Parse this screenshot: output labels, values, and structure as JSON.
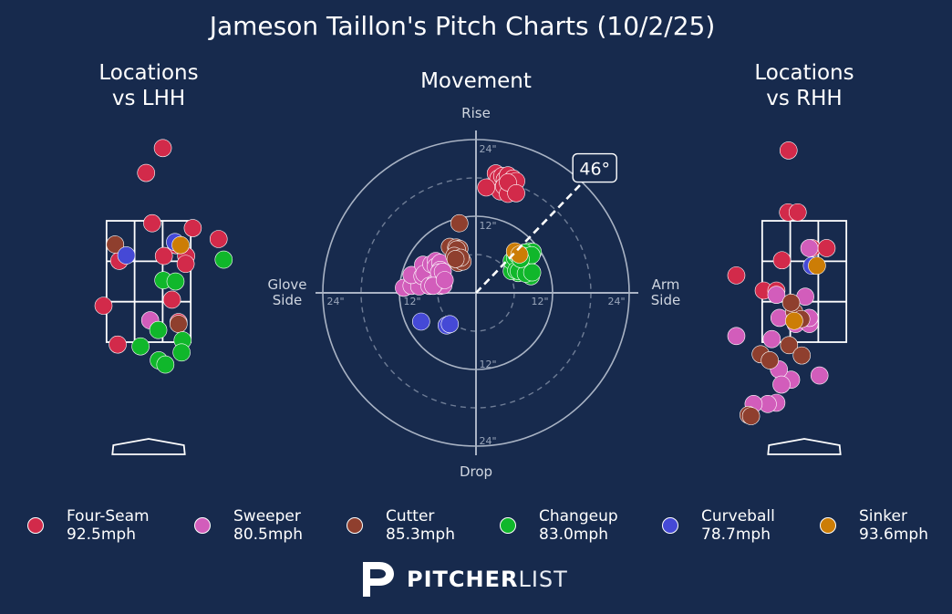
{
  "colors": {
    "background": "#172a4d",
    "text": "#ffffff",
    "polar_grid": "#a9b3c4",
    "Four-Seam": "#d22a4a",
    "Sweeper": "#d25dbb",
    "Cutter": "#8f3f2e",
    "Changeup": "#10b72b",
    "Curveball": "#4549d6",
    "Sinker": "#cc7d06"
  },
  "chart_data": [
    {
      "type": "scatter",
      "title": "Jameson Taillon's Pitch Charts (10/2/25)",
      "subtitle": "Locations vs LHH",
      "panel": "locations_lhh",
      "xlim": [
        -2.05,
        2.05
      ],
      "ylim": [
        -0.35,
        5.05
      ],
      "strike_zone": {
        "x": [
          -0.83,
          0.83
        ],
        "y": [
          1.5,
          3.5
        ]
      },
      "points": [
        {
          "pitch": "Four-Seam",
          "x": 0.28,
          "y": 4.7
        },
        {
          "pitch": "Four-Seam",
          "x": -0.05,
          "y": 4.29
        },
        {
          "pitch": "Four-Seam",
          "x": 0.07,
          "y": 3.46
        },
        {
          "pitch": "Four-Seam",
          "x": 0.87,
          "y": 3.38
        },
        {
          "pitch": "Four-Seam",
          "x": 1.38,
          "y": 3.2
        },
        {
          "pitch": "Four-Seam",
          "x": 0.54,
          "y": 3.1
        },
        {
          "pitch": "Four-Seam",
          "x": 0.74,
          "y": 2.92
        },
        {
          "pitch": "Four-Seam",
          "x": 0.3,
          "y": 2.92
        },
        {
          "pitch": "Four-Seam",
          "x": 0.73,
          "y": 2.79
        },
        {
          "pitch": "Four-Seam",
          "x": -0.58,
          "y": 2.84
        },
        {
          "pitch": "Four-Seam",
          "x": 0.46,
          "y": 2.2
        },
        {
          "pitch": "Four-Seam",
          "x": -0.89,
          "y": 2.1
        },
        {
          "pitch": "Four-Seam",
          "x": 0.59,
          "y": 1.83
        },
        {
          "pitch": "Four-Seam",
          "x": -0.61,
          "y": 1.46
        },
        {
          "pitch": "Sweeper",
          "x": 0.03,
          "y": 1.86
        },
        {
          "pitch": "Cutter",
          "x": -0.66,
          "y": 3.11
        },
        {
          "pitch": "Cutter",
          "x": 0.59,
          "y": 1.8
        },
        {
          "pitch": "Changeup",
          "x": 0.29,
          "y": 2.52
        },
        {
          "pitch": "Changeup",
          "x": 0.53,
          "y": 2.5
        },
        {
          "pitch": "Changeup",
          "x": 0.19,
          "y": 1.7
        },
        {
          "pitch": "Changeup",
          "x": 0.67,
          "y": 1.53
        },
        {
          "pitch": "Changeup",
          "x": -0.16,
          "y": 1.43
        },
        {
          "pitch": "Changeup",
          "x": 0.65,
          "y": 1.33
        },
        {
          "pitch": "Changeup",
          "x": 0.2,
          "y": 1.2
        },
        {
          "pitch": "Changeup",
          "x": 0.33,
          "y": 1.13
        },
        {
          "pitch": "Changeup",
          "x": 1.48,
          "y": 2.86
        },
        {
          "pitch": "Curveball",
          "x": -0.44,
          "y": 2.93
        },
        {
          "pitch": "Curveball",
          "x": 0.52,
          "y": 3.15
        },
        {
          "pitch": "Sinker",
          "x": 0.63,
          "y": 3.1
        }
      ]
    },
    {
      "type": "scatter",
      "subtitle": "Movement",
      "panel": "movement",
      "projection": "polar",
      "axis_labels": {
        "top": "Rise",
        "bottom": "Drop",
        "left": "Glove Side",
        "right": "Arm Side"
      },
      "rings_in": [
        12,
        24
      ],
      "dashed_rings_in": [
        6,
        18
      ],
      "ring_labels": [
        "12\"",
        "24\""
      ],
      "arm_angle_deg": 46,
      "arm_angle_label": "46°",
      "units": "inches",
      "points": [
        {
          "pitch": "Four-Seam",
          "x": 3.1,
          "y": 16.9
        },
        {
          "pitch": "Four-Seam",
          "x": 3.1,
          "y": 18.7
        },
        {
          "pitch": "Four-Seam",
          "x": 3.5,
          "y": 17.9
        },
        {
          "pitch": "Four-Seam",
          "x": 3.8,
          "y": 15.9
        },
        {
          "pitch": "Four-Seam",
          "x": 4.1,
          "y": 18.3
        },
        {
          "pitch": "Four-Seam",
          "x": 4.5,
          "y": 17.7
        },
        {
          "pitch": "Four-Seam",
          "x": 4.4,
          "y": 16.7
        },
        {
          "pitch": "Four-Seam",
          "x": 5.0,
          "y": 18.4
        },
        {
          "pitch": "Four-Seam",
          "x": 5.4,
          "y": 17.5
        },
        {
          "pitch": "Four-Seam",
          "x": 5.0,
          "y": 15.5
        },
        {
          "pitch": "Four-Seam",
          "x": 5.8,
          "y": 17.9
        },
        {
          "pitch": "Four-Seam",
          "x": 6.3,
          "y": 17.5
        },
        {
          "pitch": "Four-Seam",
          "x": 5.0,
          "y": 17.3
        },
        {
          "pitch": "Four-Seam",
          "x": 6.3,
          "y": 15.6
        },
        {
          "pitch": "Four-Seam",
          "x": 1.6,
          "y": 16.5
        },
        {
          "pitch": "Sweeper",
          "x": -11.3,
          "y": 0.8
        },
        {
          "pitch": "Sweeper",
          "x": -10.1,
          "y": 1.1
        },
        {
          "pitch": "Sweeper",
          "x": -8.9,
          "y": 1.0
        },
        {
          "pitch": "Sweeper",
          "x": -10.1,
          "y": 2.8
        },
        {
          "pitch": "Sweeper",
          "x": -8.4,
          "y": 2.6
        },
        {
          "pitch": "Sweeper",
          "x": -8.3,
          "y": 4.4
        },
        {
          "pitch": "Sweeper",
          "x": -8.1,
          "y": 3.0
        },
        {
          "pitch": "Sweeper",
          "x": -7.3,
          "y": 1.1
        },
        {
          "pitch": "Sweeper",
          "x": -7.0,
          "y": 4.5
        },
        {
          "pitch": "Sweeper",
          "x": -6.4,
          "y": 1.6
        },
        {
          "pitch": "Sweeper",
          "x": -5.6,
          "y": 1.1
        },
        {
          "pitch": "Sweeper",
          "x": -5.6,
          "y": 2.0
        },
        {
          "pitch": "Sweeper",
          "x": -6.3,
          "y": 5.0
        },
        {
          "pitch": "Sweeper",
          "x": -6.3,
          "y": 4.1
        },
        {
          "pitch": "Sweeper",
          "x": -5.6,
          "y": 4.7
        },
        {
          "pitch": "Sweeper",
          "x": -5.6,
          "y": 3.6
        },
        {
          "pitch": "Sweeper",
          "x": -5.4,
          "y": 2.3
        },
        {
          "pitch": "Sweeper",
          "x": -5.1,
          "y": 1.2
        },
        {
          "pitch": "Sweeper",
          "x": -6.6,
          "y": 1.2
        },
        {
          "pitch": "Sweeper",
          "x": -5.5,
          "y": 2.0
        },
        {
          "pitch": "Sweeper",
          "x": -5.8,
          "y": 3.2
        },
        {
          "pitch": "Sweeper",
          "x": -5.2,
          "y": 3.3
        },
        {
          "pitch": "Sweeper",
          "x": -6.7,
          "y": 1.1
        },
        {
          "pitch": "Sweeper",
          "x": -4.9,
          "y": 2.0
        },
        {
          "pitch": "Cutter",
          "x": -2.6,
          "y": 10.9
        },
        {
          "pitch": "Cutter",
          "x": -4.1,
          "y": 7.2
        },
        {
          "pitch": "Cutter",
          "x": -3.1,
          "y": 7.1
        },
        {
          "pitch": "Cutter",
          "x": -2.6,
          "y": 6.9
        },
        {
          "pitch": "Cutter",
          "x": -3.0,
          "y": 6.8
        },
        {
          "pitch": "Cutter",
          "x": -3.4,
          "y": 5.8
        },
        {
          "pitch": "Cutter",
          "x": -2.8,
          "y": 4.7
        },
        {
          "pitch": "Cutter",
          "x": -2.1,
          "y": 4.9
        },
        {
          "pitch": "Cutter",
          "x": -2.4,
          "y": 5.5
        },
        {
          "pitch": "Cutter",
          "x": -3.2,
          "y": 5.3
        },
        {
          "pitch": "Changeup",
          "x": 6.1,
          "y": 4.3
        },
        {
          "pitch": "Changeup",
          "x": 6.2,
          "y": 5.1
        },
        {
          "pitch": "Changeup",
          "x": 6.6,
          "y": 5.9
        },
        {
          "pitch": "Changeup",
          "x": 7.5,
          "y": 4.7
        },
        {
          "pitch": "Changeup",
          "x": 7.2,
          "y": 5.4
        },
        {
          "pitch": "Changeup",
          "x": 8.0,
          "y": 5.0
        },
        {
          "pitch": "Changeup",
          "x": 8.3,
          "y": 6.5
        },
        {
          "pitch": "Changeup",
          "x": 8.9,
          "y": 6.4
        },
        {
          "pitch": "Changeup",
          "x": 7.6,
          "y": 6.3
        },
        {
          "pitch": "Changeup",
          "x": 6.6,
          "y": 4.9
        },
        {
          "pitch": "Changeup",
          "x": 7.1,
          "y": 4.1
        },
        {
          "pitch": "Changeup",
          "x": 8.6,
          "y": 2.6
        },
        {
          "pitch": "Changeup",
          "x": 6.6,
          "y": 3.1
        },
        {
          "pitch": "Changeup",
          "x": 5.6,
          "y": 3.4
        },
        {
          "pitch": "Changeup",
          "x": 5.6,
          "y": 5.0
        },
        {
          "pitch": "Changeup",
          "x": 6.1,
          "y": 5.5
        },
        {
          "pitch": "Changeup",
          "x": 7.4,
          "y": 5.8
        },
        {
          "pitch": "Changeup",
          "x": 8.7,
          "y": 5.9
        },
        {
          "pitch": "Changeup",
          "x": 6.3,
          "y": 3.5
        },
        {
          "pitch": "Changeup",
          "x": 6.7,
          "y": 3.4
        },
        {
          "pitch": "Changeup",
          "x": 7.8,
          "y": 3.0
        },
        {
          "pitch": "Changeup",
          "x": 8.8,
          "y": 3.2
        },
        {
          "pitch": "Changeup",
          "x": 6.4,
          "y": 6.0
        },
        {
          "pitch": "Changeup",
          "x": 7.0,
          "y": 5.3
        },
        {
          "pitch": "Curveball",
          "x": -8.6,
          "y": -4.5
        },
        {
          "pitch": "Curveball",
          "x": -4.6,
          "y": -5.1
        },
        {
          "pitch": "Curveball",
          "x": -4.1,
          "y": -4.9
        },
        {
          "pitch": "Sinker",
          "x": 6.1,
          "y": 6.5
        },
        {
          "pitch": "Sinker",
          "x": 6.8,
          "y": 6.0
        }
      ]
    },
    {
      "type": "scatter",
      "subtitle": "Locations vs RHH",
      "panel": "locations_rhh",
      "xlim": [
        -2.05,
        2.05
      ],
      "ylim": [
        -0.35,
        5.05
      ],
      "strike_zone": {
        "x": [
          -0.83,
          0.83
        ],
        "y": [
          1.5,
          3.5
        ]
      },
      "points": [
        {
          "pitch": "Four-Seam",
          "x": -0.31,
          "y": 4.66
        },
        {
          "pitch": "Four-Seam",
          "x": -0.32,
          "y": 3.64
        },
        {
          "pitch": "Four-Seam",
          "x": -0.13,
          "y": 3.64
        },
        {
          "pitch": "Four-Seam",
          "x": 0.15,
          "y": 3.05
        },
        {
          "pitch": "Four-Seam",
          "x": 0.44,
          "y": 3.05
        },
        {
          "pitch": "Four-Seam",
          "x": -0.44,
          "y": 2.85
        },
        {
          "pitch": "Four-Seam",
          "x": -1.34,
          "y": 2.6
        },
        {
          "pitch": "Four-Seam",
          "x": -0.8,
          "y": 2.35
        },
        {
          "pitch": "Four-Seam",
          "x": -0.55,
          "y": 2.35
        },
        {
          "pitch": "Sweeper",
          "x": -1.34,
          "y": 1.6
        },
        {
          "pitch": "Sweeper",
          "x": -0.55,
          "y": 2.28
        },
        {
          "pitch": "Sweeper",
          "x": -0.49,
          "y": 1.9
        },
        {
          "pitch": "Sweeper",
          "x": -0.17,
          "y": 1.8
        },
        {
          "pitch": "Sweeper",
          "x": 0.1,
          "y": 1.8
        },
        {
          "pitch": "Sweeper",
          "x": 0.1,
          "y": 3.05
        },
        {
          "pitch": "Sweeper",
          "x": 0.02,
          "y": 2.25
        },
        {
          "pitch": "Sweeper",
          "x": -0.26,
          "y": 0.88
        },
        {
          "pitch": "Sweeper",
          "x": -0.55,
          "y": 0.5
        },
        {
          "pitch": "Sweeper",
          "x": -0.72,
          "y": 0.48
        },
        {
          "pitch": "Sweeper",
          "x": 0.1,
          "y": 1.9
        },
        {
          "pitch": "Sweeper",
          "x": 0.3,
          "y": 0.95
        },
        {
          "pitch": "Sweeper",
          "x": -0.64,
          "y": 1.55
        },
        {
          "pitch": "Sweeper",
          "x": -1.0,
          "y": 0.48
        },
        {
          "pitch": "Sweeper",
          "x": -0.5,
          "y": 1.05
        },
        {
          "pitch": "Sweeper",
          "x": -0.45,
          "y": 0.8
        },
        {
          "pitch": "Cutter",
          "x": -0.2,
          "y": 2.0
        },
        {
          "pitch": "Cutter",
          "x": -0.06,
          "y": 1.88
        },
        {
          "pitch": "Cutter",
          "x": -0.26,
          "y": 2.15
        },
        {
          "pitch": "Cutter",
          "x": -0.86,
          "y": 1.3
        },
        {
          "pitch": "Cutter",
          "x": -0.68,
          "y": 1.2
        },
        {
          "pitch": "Cutter",
          "x": -0.3,
          "y": 1.45
        },
        {
          "pitch": "Cutter",
          "x": -0.05,
          "y": 1.28
        },
        {
          "pitch": "Cutter",
          "x": -1.1,
          "y": 0.3
        },
        {
          "pitch": "Cutter",
          "x": -1.05,
          "y": 0.28
        },
        {
          "pitch": "Curveball",
          "x": 0.15,
          "y": 2.76
        },
        {
          "pitch": "Sinker",
          "x": 0.25,
          "y": 2.76
        },
        {
          "pitch": "Sinker",
          "x": -0.2,
          "y": 1.85
        }
      ]
    }
  ],
  "legend": [
    {
      "pitch": "Four-Seam",
      "speed": "92.5mph"
    },
    {
      "pitch": "Sweeper",
      "speed": "80.5mph"
    },
    {
      "pitch": "Cutter",
      "speed": "85.3mph"
    },
    {
      "pitch": "Changeup",
      "speed": "83.0mph"
    },
    {
      "pitch": "Curveball",
      "speed": "78.7mph"
    },
    {
      "pitch": "Sinker",
      "speed": "93.6mph"
    }
  ],
  "brand": {
    "bold": "PITCHER",
    "light": "LIST"
  }
}
